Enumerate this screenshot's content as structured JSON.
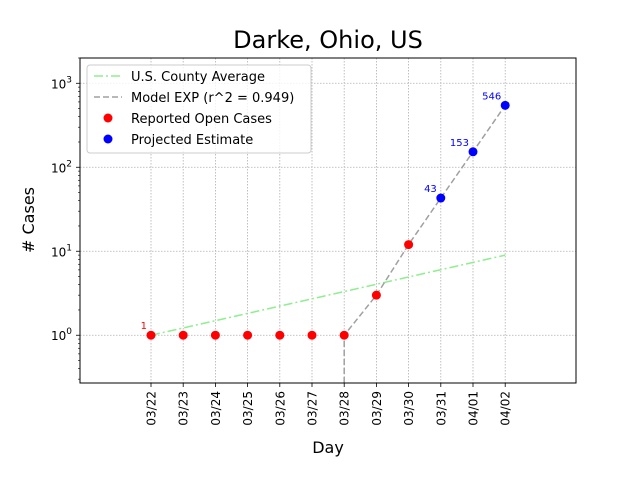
{
  "chart_data": {
    "type": "scatter",
    "title": "Darke, Ohio, US",
    "xlabel": "Day",
    "ylabel": "# Cases",
    "yscale": "log",
    "ylim": [
      0.27,
      2000
    ],
    "categories": [
      "03/22",
      "03/23",
      "03/24",
      "03/25",
      "03/26",
      "03/27",
      "03/28",
      "03/29",
      "03/30",
      "03/31",
      "04/01",
      "04/02"
    ],
    "y_ticks": [
      {
        "value": 1,
        "label": "10^0",
        "base": "10",
        "exp": "0"
      },
      {
        "value": 10,
        "label": "10^1",
        "base": "10",
        "exp": "1"
      },
      {
        "value": 100,
        "label": "10^2",
        "base": "10",
        "exp": "2"
      },
      {
        "value": 1000,
        "label": "10^3",
        "base": "10",
        "exp": "3"
      }
    ],
    "grid": true,
    "legend_position": "top-left",
    "series": [
      {
        "name": "U.S. County Average",
        "kind": "line",
        "style": "dashdot",
        "color": "#90ee90",
        "x": [
          "03/22",
          "04/02"
        ],
        "values": [
          1.0,
          9.0
        ]
      },
      {
        "name": "Model EXP (r^2 = 0.949)",
        "kind": "line",
        "style": "dashed",
        "color": "#a0a0a0",
        "x": [
          "03/28",
          "03/28",
          "03/29",
          "03/30",
          "03/31",
          "04/01",
          "04/02"
        ],
        "values": [
          0.27,
          1.0,
          3.0,
          12.0,
          43,
          153,
          546
        ]
      },
      {
        "name": "Reported Open Cases",
        "kind": "points",
        "color": "#ff0000",
        "x": [
          "03/22",
          "03/23",
          "03/24",
          "03/25",
          "03/26",
          "03/27",
          "03/28",
          "03/29",
          "03/30"
        ],
        "values": [
          1,
          1,
          1,
          1,
          1,
          1,
          1,
          3,
          12
        ]
      },
      {
        "name": "Projected Estimate",
        "kind": "points",
        "color": "#0000ff",
        "x": [
          "03/31",
          "04/01",
          "04/02"
        ],
        "values": [
          43,
          153,
          546
        ]
      }
    ],
    "annotations": [
      {
        "x": "03/22",
        "y": 1,
        "text": "1",
        "color": "#ff0000"
      },
      {
        "x": "03/31",
        "y": 43,
        "text": "43",
        "color": "#0000ff"
      },
      {
        "x": "04/01",
        "y": 153,
        "text": "153",
        "color": "#0000ff"
      },
      {
        "x": "04/02",
        "y": 546,
        "text": "546",
        "color": "#0000ff"
      }
    ]
  }
}
